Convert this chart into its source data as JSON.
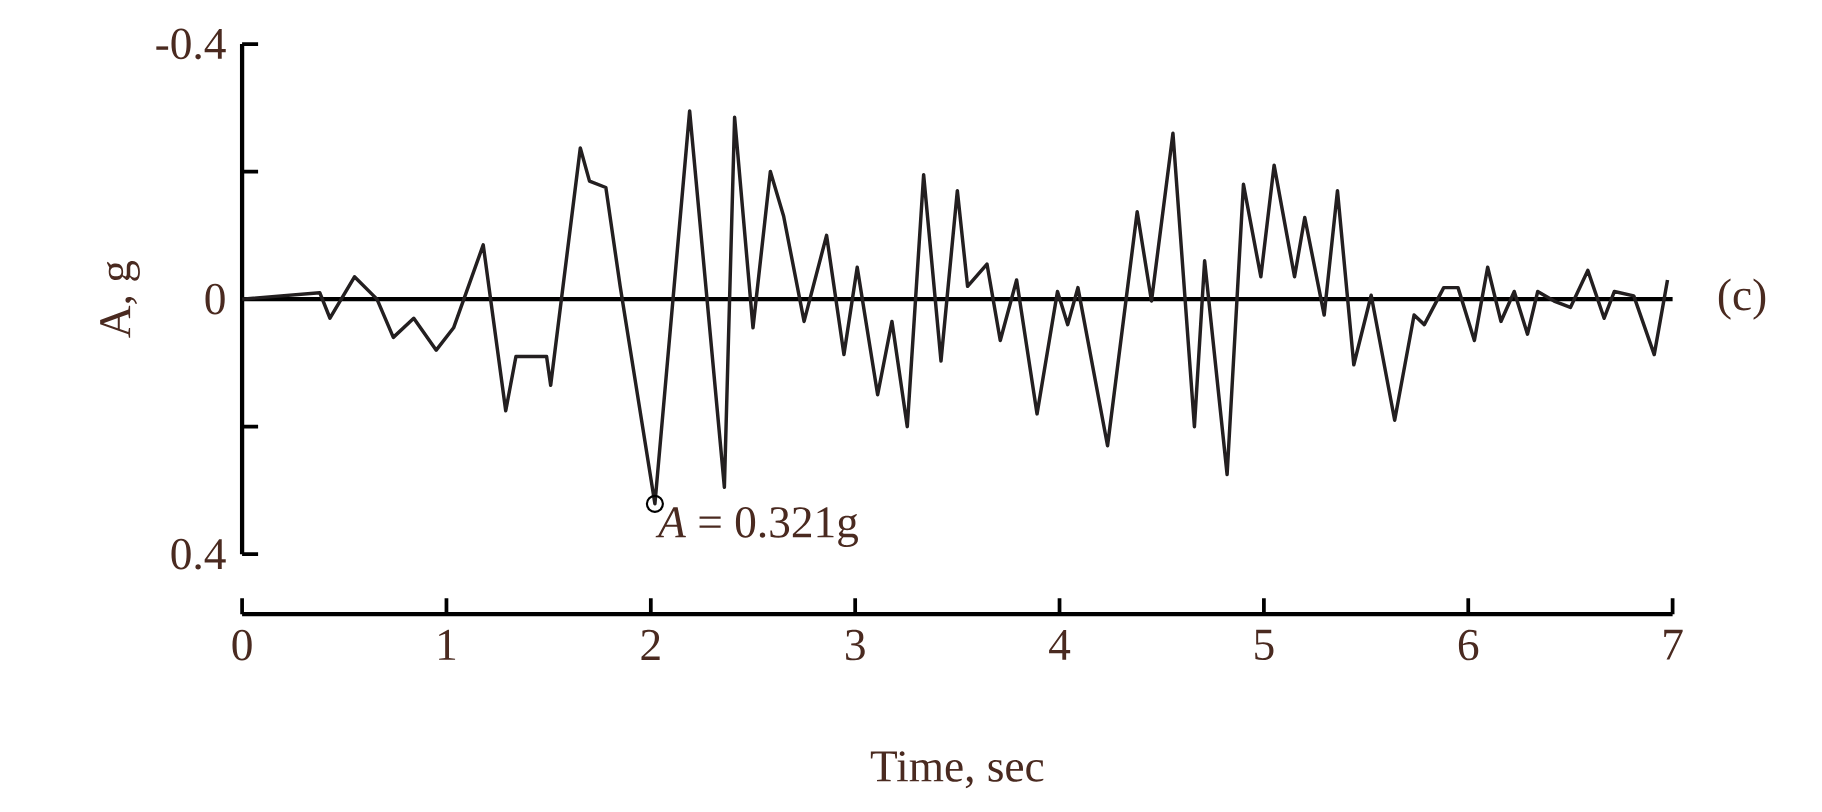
{
  "chart_data": {
    "type": "line",
    "xlabel": "Time, sec",
    "ylabel": "A, g",
    "x": [
      0,
      0.38,
      0.43,
      0.55,
      0.66,
      0.74,
      0.84,
      0.95,
      1.035,
      1.18,
      1.29,
      1.34,
      1.49,
      1.51,
      1.655,
      1.7,
      1.78,
      1.85,
      2.02,
      2.19,
      2.36,
      2.41,
      2.5,
      2.585,
      2.65,
      2.75,
      2.86,
      2.945,
      3.01,
      3.11,
      3.18,
      3.255,
      3.335,
      3.42,
      3.5,
      3.55,
      3.645,
      3.71,
      3.79,
      3.89,
      3.99,
      4.04,
      4.09,
      4.235,
      4.38,
      4.45,
      4.555,
      4.66,
      4.71,
      4.82,
      4.9,
      4.985,
      5.05,
      5.15,
      5.2,
      5.295,
      5.36,
      5.44,
      5.525,
      5.64,
      5.735,
      5.785,
      5.88,
      5.95,
      6.03,
      6.095,
      6.16,
      6.225,
      6.29,
      6.34,
      6.42,
      6.5,
      6.585,
      6.665,
      6.715,
      6.81,
      6.91,
      6.975
    ],
    "values": [
      0,
      -0.01,
      0.03,
      -0.035,
      0,
      0.06,
      0.03,
      0.08,
      0.045,
      -0.085,
      0.175,
      0.09,
      0.09,
      0.135,
      -0.237,
      -0.185,
      -0.175,
      -0.02,
      0.321,
      -0.295,
      0.295,
      -0.285,
      0.045,
      -0.2,
      -0.13,
      0.035,
      -0.1,
      0.087,
      -0.05,
      0.15,
      0.035,
      0.2,
      -0.195,
      0.097,
      -0.17,
      -0.02,
      -0.055,
      0.065,
      -0.03,
      0.18,
      -0.012,
      0.04,
      -0.018,
      0.23,
      -0.137,
      0.003,
      -0.26,
      0.2,
      -0.06,
      0.275,
      -0.18,
      -0.035,
      -0.21,
      -0.035,
      -0.128,
      0.025,
      -0.17,
      0.103,
      -0.006,
      0.19,
      0.025,
      0.04,
      -0.018,
      -0.018,
      0.065,
      -0.05,
      0.035,
      -0.012,
      0.055,
      -0.012,
      0.003,
      0.013,
      -0.045,
      0.03,
      -0.012,
      -0.005,
      0.087,
      -0.03
    ],
    "color": "#231f20",
    "xlim": [
      0,
      7
    ],
    "xticks": [
      0,
      1,
      2,
      3,
      4,
      5,
      6,
      7
    ],
    "ylim": [
      0.4,
      -0.4
    ],
    "yticks": [
      -0.4,
      {
        "value": -0.2,
        "label": null
      },
      0,
      {
        "value": 0.2,
        "label": null
      },
      0.4
    ],
    "ref_lines": [
      {
        "axis": "y",
        "value": 0
      }
    ],
    "annotations": [
      {
        "text": "*A* = 0.321g",
        "x": 2.02,
        "y": 0.321
      },
      "(c)"
    ],
    "marker": "none",
    "line_style": "solid"
  }
}
